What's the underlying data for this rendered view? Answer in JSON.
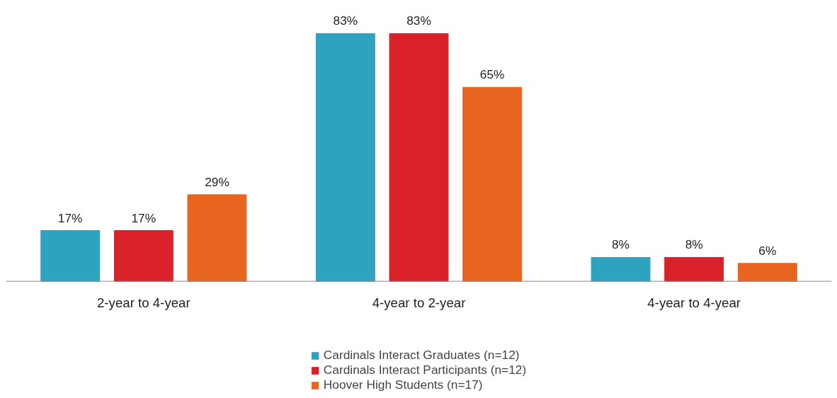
{
  "chart_data": {
    "type": "bar",
    "categories": [
      "2-year to 4-year",
      "4-year to 2-year",
      "4-year to 4-year"
    ],
    "series": [
      {
        "name": "Cardinals Interact Graduates (n=12)",
        "color": "#2ea3c0",
        "values": [
          17,
          83,
          8
        ],
        "value_labels": [
          "17%",
          "83%",
          "8%"
        ]
      },
      {
        "name": "Cardinals Interact Participants (n=12)",
        "color": "#da2029",
        "values": [
          17,
          83,
          8
        ],
        "value_labels": [
          "17%",
          "83%",
          "8%"
        ]
      },
      {
        "name": "Hoover High Students (n=17)",
        "color": "#e8651f",
        "values": [
          29,
          65,
          6
        ],
        "value_labels": [
          "29%",
          "65%",
          "6%"
        ]
      }
    ],
    "legend": "bottom"
  }
}
